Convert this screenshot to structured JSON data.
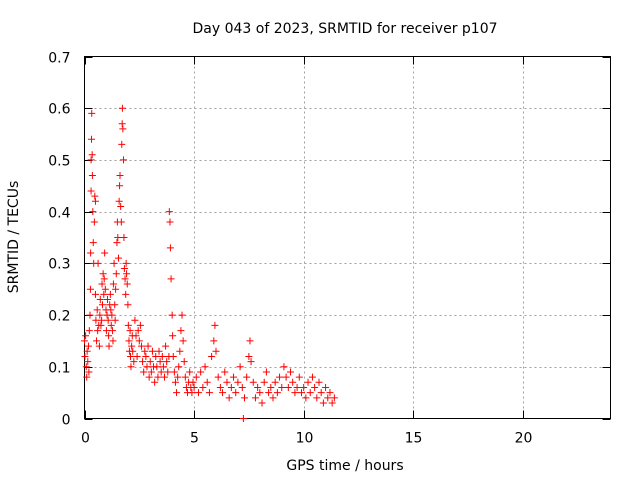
{
  "chart_data": {
    "type": "scatter",
    "title": "Day 043 of 2023, SRMTID for receiver p107",
    "xlabel": "GPS time / hours",
    "ylabel": "SRMTID / TECUs",
    "xlim": [
      0,
      24
    ],
    "ylim": [
      0,
      0.7
    ],
    "xticks": [
      0,
      5,
      10,
      15,
      20
    ],
    "yticks": [
      0,
      0.1,
      0.2,
      0.3,
      0.4,
      0.5,
      0.6,
      0.7
    ],
    "xtick_labels": [
      "0",
      "5",
      "10",
      "15",
      "20"
    ],
    "ytick_labels": [
      "0",
      "0.1",
      "0.2",
      "0.3",
      "0.4",
      "0.5",
      "0.6",
      "0.7"
    ],
    "grid": true,
    "marker": "+",
    "color": "#ff0000",
    "series": [
      {
        "name": "p107",
        "points": [
          [
            0.0,
            0.15
          ],
          [
            0.02,
            0.12
          ],
          [
            0.05,
            0.16
          ],
          [
            0.08,
            0.1
          ],
          [
            0.1,
            0.08
          ],
          [
            0.12,
            0.13
          ],
          [
            0.15,
            0.11
          ],
          [
            0.18,
            0.14
          ],
          [
            0.2,
            0.09
          ],
          [
            0.22,
            0.17
          ],
          [
            0.25,
            0.2
          ],
          [
            0.27,
            0.25
          ],
          [
            0.28,
            0.32
          ],
          [
            0.3,
            0.44
          ],
          [
            0.3,
            0.5
          ],
          [
            0.32,
            0.54
          ],
          [
            0.33,
            0.59
          ],
          [
            0.35,
            0.51
          ],
          [
            0.36,
            0.47
          ],
          [
            0.38,
            0.4
          ],
          [
            0.4,
            0.34
          ],
          [
            0.42,
            0.3
          ],
          [
            0.45,
            0.38
          ],
          [
            0.47,
            0.43
          ],
          [
            0.5,
            0.42
          ],
          [
            0.5,
            0.24
          ],
          [
            0.52,
            0.19
          ],
          [
            0.55,
            0.15
          ],
          [
            0.58,
            0.21
          ],
          [
            0.6,
            0.17
          ],
          [
            0.62,
            0.3
          ],
          [
            0.65,
            0.18
          ],
          [
            0.68,
            0.14
          ],
          [
            0.7,
            0.2
          ],
          [
            0.72,
            0.23
          ],
          [
            0.75,
            0.18
          ],
          [
            0.78,
            0.19
          ],
          [
            0.8,
            0.26
          ],
          [
            0.82,
            0.22
          ],
          [
            0.85,
            0.28
          ],
          [
            0.88,
            0.24
          ],
          [
            0.9,
            0.27
          ],
          [
            0.92,
            0.32
          ],
          [
            0.95,
            0.25
          ],
          [
            0.98,
            0.21
          ],
          [
            1.0,
            0.17
          ],
          [
            1.03,
            0.2
          ],
          [
            1.05,
            0.23
          ],
          [
            1.08,
            0.19
          ],
          [
            1.1,
            0.16
          ],
          [
            1.12,
            0.14
          ],
          [
            1.15,
            0.22
          ],
          [
            1.18,
            0.24
          ],
          [
            1.2,
            0.21
          ],
          [
            1.22,
            0.18
          ],
          [
            1.25,
            0.2
          ],
          [
            1.28,
            0.17
          ],
          [
            1.3,
            0.15
          ],
          [
            1.32,
            0.26
          ],
          [
            1.35,
            0.3
          ],
          [
            1.38,
            0.22
          ],
          [
            1.4,
            0.19
          ],
          [
            1.42,
            0.25
          ],
          [
            1.45,
            0.28
          ],
          [
            1.48,
            0.34
          ],
          [
            1.5,
            0.38
          ],
          [
            1.52,
            0.35
          ],
          [
            1.55,
            0.31
          ],
          [
            1.58,
            0.42
          ],
          [
            1.6,
            0.45
          ],
          [
            1.62,
            0.47
          ],
          [
            1.65,
            0.41
          ],
          [
            1.68,
            0.38
          ],
          [
            1.7,
            0.53
          ],
          [
            1.72,
            0.57
          ],
          [
            1.73,
            0.6
          ],
          [
            1.75,
            0.56
          ],
          [
            1.78,
            0.5
          ],
          [
            1.8,
            0.35
          ],
          [
            1.82,
            0.29
          ],
          [
            1.85,
            0.27
          ],
          [
            1.88,
            0.24
          ],
          [
            1.9,
            0.3
          ],
          [
            1.92,
            0.28
          ],
          [
            1.95,
            0.26
          ],
          [
            1.98,
            0.22
          ],
          [
            2.0,
            0.18
          ],
          [
            2.03,
            0.15
          ],
          [
            2.05,
            0.13
          ],
          [
            2.08,
            0.17
          ],
          [
            2.1,
            0.12
          ],
          [
            2.12,
            0.1
          ],
          [
            2.15,
            0.14
          ],
          [
            2.18,
            0.16
          ],
          [
            2.2,
            0.13
          ],
          [
            2.25,
            0.11
          ],
          [
            2.3,
            0.19
          ],
          [
            2.35,
            0.16
          ],
          [
            2.4,
            0.12
          ],
          [
            2.45,
            0.17
          ],
          [
            2.5,
            0.15
          ],
          [
            2.55,
            0.18
          ],
          [
            2.6,
            0.14
          ],
          [
            2.65,
            0.11
          ],
          [
            2.7,
            0.09
          ],
          [
            2.75,
            0.13
          ],
          [
            2.8,
            0.12
          ],
          [
            2.85,
            0.1
          ],
          [
            2.9,
            0.14
          ],
          [
            2.95,
            0.08
          ],
          [
            3.0,
            0.11
          ],
          [
            3.05,
            0.09
          ],
          [
            3.1,
            0.13
          ],
          [
            3.15,
            0.1
          ],
          [
            3.2,
            0.07
          ],
          [
            3.25,
            0.12
          ],
          [
            3.3,
            0.1
          ],
          [
            3.35,
            0.08
          ],
          [
            3.4,
            0.13
          ],
          [
            3.45,
            0.11
          ],
          [
            3.5,
            0.09
          ],
          [
            3.55,
            0.12
          ],
          [
            3.6,
            0.1
          ],
          [
            3.65,
            0.08
          ],
          [
            3.7,
            0.14
          ],
          [
            3.75,
            0.11
          ],
          [
            3.8,
            0.09
          ],
          [
            3.85,
            0.12
          ],
          [
            3.87,
            0.4
          ],
          [
            3.9,
            0.38
          ],
          [
            3.92,
            0.33
          ],
          [
            3.95,
            0.27
          ],
          [
            4.0,
            0.2
          ],
          [
            4.02,
            0.16
          ],
          [
            4.05,
            0.12
          ],
          [
            4.1,
            0.09
          ],
          [
            4.15,
            0.07
          ],
          [
            4.2,
            0.05
          ],
          [
            4.25,
            0.08
          ],
          [
            4.3,
            0.1
          ],
          [
            4.35,
            0.13
          ],
          [
            4.4,
            0.17
          ],
          [
            4.45,
            0.2
          ],
          [
            4.5,
            0.15
          ],
          [
            4.55,
            0.11
          ],
          [
            4.6,
            0.08
          ],
          [
            4.65,
            0.06
          ],
          [
            4.7,
            0.05
          ],
          [
            4.75,
            0.07
          ],
          [
            4.8,
            0.09
          ],
          [
            4.85,
            0.06
          ],
          [
            4.9,
            0.05
          ],
          [
            4.95,
            0.07
          ],
          [
            5.0,
            0.06
          ],
          [
            5.1,
            0.08
          ],
          [
            5.2,
            0.05
          ],
          [
            5.3,
            0.09
          ],
          [
            5.4,
            0.06
          ],
          [
            5.5,
            0.1
          ],
          [
            5.6,
            0.07
          ],
          [
            5.7,
            0.05
          ],
          [
            5.8,
            0.12
          ],
          [
            5.9,
            0.15
          ],
          [
            5.95,
            0.18
          ],
          [
            6.0,
            0.13
          ],
          [
            6.1,
            0.08
          ],
          [
            6.2,
            0.06
          ],
          [
            6.3,
            0.05
          ],
          [
            6.4,
            0.09
          ],
          [
            6.5,
            0.07
          ],
          [
            6.6,
            0.04
          ],
          [
            6.7,
            0.06
          ],
          [
            6.8,
            0.08
          ],
          [
            6.9,
            0.05
          ],
          [
            7.0,
            0.07
          ],
          [
            7.1,
            0.1
          ],
          [
            7.2,
            0.06
          ],
          [
            7.25,
            0.0
          ],
          [
            7.3,
            0.04
          ],
          [
            7.4,
            0.08
          ],
          [
            7.5,
            0.12
          ],
          [
            7.55,
            0.15
          ],
          [
            7.6,
            0.11
          ],
          [
            7.7,
            0.07
          ],
          [
            7.8,
            0.04
          ],
          [
            7.9,
            0.06
          ],
          [
            8.0,
            0.05
          ],
          [
            8.1,
            0.03
          ],
          [
            8.2,
            0.07
          ],
          [
            8.3,
            0.09
          ],
          [
            8.4,
            0.05
          ],
          [
            8.5,
            0.06
          ],
          [
            8.6,
            0.04
          ],
          [
            8.7,
            0.07
          ],
          [
            8.8,
            0.05
          ],
          [
            8.9,
            0.08
          ],
          [
            9.0,
            0.06
          ],
          [
            9.1,
            0.1
          ],
          [
            9.2,
            0.08
          ],
          [
            9.3,
            0.06
          ],
          [
            9.4,
            0.09
          ],
          [
            9.5,
            0.07
          ],
          [
            9.6,
            0.05
          ],
          [
            9.7,
            0.06
          ],
          [
            9.8,
            0.08
          ],
          [
            9.9,
            0.05
          ],
          [
            10.0,
            0.06
          ],
          [
            10.1,
            0.04
          ],
          [
            10.2,
            0.07
          ],
          [
            10.3,
            0.05
          ],
          [
            10.4,
            0.08
          ],
          [
            10.5,
            0.06
          ],
          [
            10.6,
            0.04
          ],
          [
            10.7,
            0.07
          ],
          [
            10.8,
            0.05
          ],
          [
            10.9,
            0.03
          ],
          [
            11.0,
            0.06
          ],
          [
            11.1,
            0.04
          ],
          [
            11.2,
            0.05
          ],
          [
            11.3,
            0.03
          ],
          [
            11.4,
            0.04
          ]
        ]
      }
    ]
  }
}
